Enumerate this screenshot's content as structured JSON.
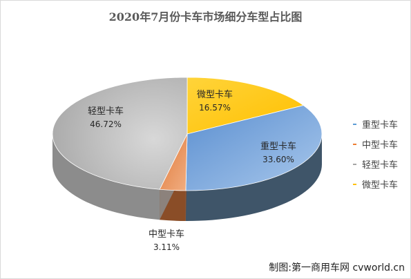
{
  "chart_data": {
    "type": "pie",
    "title": "2020年7月份卡车市场细分车型占比图",
    "slices": [
      {
        "name": "重型卡车",
        "value": 33.6,
        "label": "33.60%",
        "color": "#6f9fd8"
      },
      {
        "name": "中型卡车",
        "value": 3.11,
        "label": "3.11%",
        "color": "#e9915a"
      },
      {
        "name": "轻型卡车",
        "value": 46.72,
        "label": "46.72%",
        "color": "#b0b0b0"
      },
      {
        "name": "微型卡车",
        "value": 16.57,
        "label": "16.57%",
        "color": "#ffc000"
      }
    ],
    "legend_position": "right",
    "style": "3d"
  },
  "credit": "制图:第一商用车网 cvworld.cn"
}
